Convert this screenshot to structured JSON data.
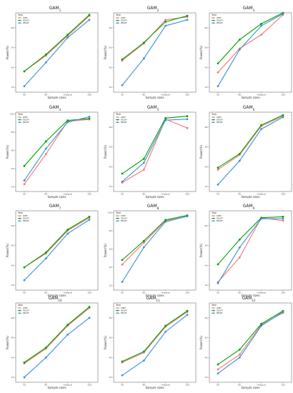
{
  "colors": {
    "WMT": "#f8766d",
    "DELRT": "#00a000",
    "BELRT": "#3b8fd9"
  },
  "legend_title": "Test",
  "chart_data": [
    {
      "type": "line",
      "title": "GAM_1",
      "xlabel": "Sample sizes",
      "ylabel": "Power(%)",
      "categories": [
        "50",
        "80",
        "Unequal",
        "150"
      ],
      "yticks": [
        "20",
        "40",
        "60",
        "80"
      ],
      "ylim": [
        15,
        95
      ],
      "legend": "top-left",
      "grid": false,
      "series": [
        {
          "name": "WMT",
          "values": [
            36,
            52,
            72,
            92
          ]
        },
        {
          "name": "DELRT",
          "values": [
            36,
            53,
            73,
            93
          ]
        },
        {
          "name": "BELRT",
          "values": [
            21,
            45,
            70,
            88
          ]
        }
      ]
    },
    {
      "type": "line",
      "title": "GAM_2",
      "xlabel": "Sample sizes",
      "ylabel": "Power(%)",
      "categories": [
        "50",
        "80",
        "Unequal",
        "150"
      ],
      "yticks": [
        "20",
        "40",
        "60",
        "80"
      ],
      "ylim": [
        15,
        95
      ],
      "legend": "top-left",
      "grid": false,
      "series": [
        {
          "name": "WMT",
          "values": [
            47,
            64,
            88,
            91
          ]
        },
        {
          "name": "DELRT",
          "values": [
            48,
            65,
            86,
            92
          ]
        },
        {
          "name": "BELRT",
          "values": [
            22,
            49,
            82,
            88
          ]
        }
      ]
    },
    {
      "type": "line",
      "title": "GAM_3",
      "xlabel": "Sample sizes",
      "ylabel": "Power(%)",
      "categories": [
        "50",
        "80",
        "Unequal",
        "150"
      ],
      "yticks": [
        "20",
        "40",
        "60",
        "80"
      ],
      "ylim": [
        15,
        95
      ],
      "legend": "top-left",
      "grid": false,
      "series": [
        {
          "name": "WMT",
          "values": [
            35,
            59,
            73,
            93
          ]
        },
        {
          "name": "DELRT",
          "values": [
            44,
            68,
            84,
            95
          ]
        },
        {
          "name": "BELRT",
          "values": [
            21,
            58,
            82,
            94
          ]
        }
      ]
    },
    {
      "type": "line",
      "title": "GAM_4",
      "xlabel": "Sample sizes",
      "ylabel": "Power(%)",
      "categories": [
        "50",
        "80",
        "Unequal",
        "150"
      ],
      "yticks": [
        "20",
        "40",
        "60",
        "80",
        "100"
      ],
      "ylim": [
        15,
        102
      ],
      "legend": "top-left",
      "grid": false,
      "series": [
        {
          "name": "WMT",
          "values": [
            23,
            56,
            92,
            94
          ]
        },
        {
          "name": "DELRT",
          "values": [
            43,
            70,
            93,
            95
          ]
        },
        {
          "name": "BELRT",
          "values": [
            27,
            62,
            91,
            97
          ]
        }
      ]
    },
    {
      "type": "line",
      "title": "GAM_5",
      "xlabel": "Sample sizes",
      "ylabel": "Power(%)",
      "categories": [
        "50",
        "80",
        "Unequal",
        "150"
      ],
      "yticks": [
        "20",
        "40",
        "60",
        "80"
      ],
      "ylim": [
        15,
        95
      ],
      "legend": "top-left",
      "grid": false,
      "series": [
        {
          "name": "WMT",
          "values": [
            24,
            37,
            88,
            79
          ]
        },
        {
          "name": "DELRT",
          "values": [
            33,
            48,
            89,
            91
          ]
        },
        {
          "name": "BELRT",
          "values": [
            25,
            44,
            87,
            88
          ]
        }
      ]
    },
    {
      "type": "line",
      "title": "GAM_6",
      "xlabel": "Sample sizes",
      "ylabel": "Power(%)",
      "categories": [
        "50",
        "80",
        "Unequal",
        "150"
      ],
      "yticks": [
        "20",
        "40",
        "60",
        "80"
      ],
      "ylim": [
        15,
        95
      ],
      "legend": "top-left",
      "grid": false,
      "series": [
        {
          "name": "WMT",
          "values": [
            37,
            52,
            81,
            91
          ]
        },
        {
          "name": "DELRT",
          "values": [
            39,
            53,
            82,
            92
          ]
        },
        {
          "name": "BELRT",
          "values": [
            22,
            46,
            78,
            90
          ]
        }
      ]
    },
    {
      "type": "line",
      "title": "GAM_7",
      "xlabel": "Sample sizes",
      "ylabel": "Power(%)",
      "categories": [
        "50",
        "80",
        "Unequal",
        "150"
      ],
      "yticks": [
        "20",
        "40",
        "60",
        "80"
      ],
      "ylim": [
        15,
        95
      ],
      "legend": "top-left",
      "grid": false,
      "series": [
        {
          "name": "WMT",
          "values": [
            38,
            52,
            75,
            88
          ]
        },
        {
          "name": "DELRT",
          "values": [
            38,
            53,
            76,
            89
          ]
        },
        {
          "name": "BELRT",
          "values": [
            25,
            47,
            72,
            86
          ]
        }
      ]
    },
    {
      "type": "line",
      "title": "GAM_8",
      "xlabel": "Sample sizes",
      "ylabel": "Power(%)",
      "categories": [
        "50",
        "80",
        "Unequal",
        "150"
      ],
      "yticks": [
        "20",
        "40",
        "60",
        "80",
        "100"
      ],
      "ylim": [
        15,
        102
      ],
      "legend": "top-left",
      "grid": false,
      "series": [
        {
          "name": "WMT",
          "values": [
            43,
            67,
            91,
            96
          ]
        },
        {
          "name": "DELRT",
          "values": [
            48,
            69,
            92,
            97
          ]
        },
        {
          "name": "BELRT",
          "values": [
            24,
            62,
            90,
            96
          ]
        }
      ]
    },
    {
      "type": "line",
      "title": "GAM_9",
      "xlabel": "Sample sizes",
      "ylabel": "Power(%)",
      "categories": [
        "50",
        "80",
        "Unequal",
        "150"
      ],
      "yticks": [
        "20",
        "40",
        "60",
        "80"
      ],
      "ylim": [
        15,
        95
      ],
      "legend": "top-left",
      "grid": false,
      "series": [
        {
          "name": "WMT",
          "values": [
            23,
            48,
            88,
            85
          ]
        },
        {
          "name": "DELRT",
          "values": [
            41,
            66,
            88,
            89
          ]
        },
        {
          "name": "BELRT",
          "values": [
            22,
            58,
            87,
            87
          ]
        }
      ]
    },
    {
      "type": "line",
      "title": "GAM_10",
      "xlabel": "Sample sizes",
      "ylabel": "Power(%)",
      "categories": [
        "50",
        "80",
        "Unequal",
        "150"
      ],
      "yticks": [
        "20",
        "40",
        "60",
        "80"
      ],
      "ylim": [
        15,
        95
      ],
      "legend": "top-left",
      "grid": false,
      "series": [
        {
          "name": "WMT",
          "values": [
            34,
            49,
            72,
            90
          ]
        },
        {
          "name": "DELRT",
          "values": [
            35,
            50,
            73,
            91
          ]
        },
        {
          "name": "BELRT",
          "values": [
            20,
            40,
            63,
            80
          ]
        }
      ]
    },
    {
      "type": "line",
      "title": "GAM_11",
      "xlabel": "Sample sizes",
      "ylabel": "Power(%)",
      "categories": [
        "50",
        "80",
        "Unequal",
        "150"
      ],
      "yticks": [
        "20",
        "40",
        "60",
        "80"
      ],
      "ylim": [
        15,
        95
      ],
      "legend": "top-left",
      "grid": false,
      "series": [
        {
          "name": "WMT",
          "values": [
            35,
            45,
            71,
            86
          ]
        },
        {
          "name": "DELRT",
          "values": [
            36,
            46,
            72,
            87
          ]
        },
        {
          "name": "BELRT",
          "values": [
            22,
            37,
            66,
            83
          ]
        }
      ]
    },
    {
      "type": "line",
      "title": "GAM_12",
      "xlabel": "Sample sizes",
      "ylabel": "Power(%)",
      "categories": [
        "50",
        "80",
        "Unequal",
        "150"
      ],
      "yticks": [
        "20",
        "40",
        "60",
        "80"
      ],
      "ylim": [
        15,
        95
      ],
      "legend": "top-left",
      "grid": false,
      "series": [
        {
          "name": "WMT",
          "values": [
            28,
            43,
            73,
            85
          ]
        },
        {
          "name": "DELRT",
          "values": [
            33,
            48,
            74,
            87
          ]
        },
        {
          "name": "BELRT",
          "values": [
            24,
            40,
            72,
            86
          ]
        }
      ]
    }
  ]
}
